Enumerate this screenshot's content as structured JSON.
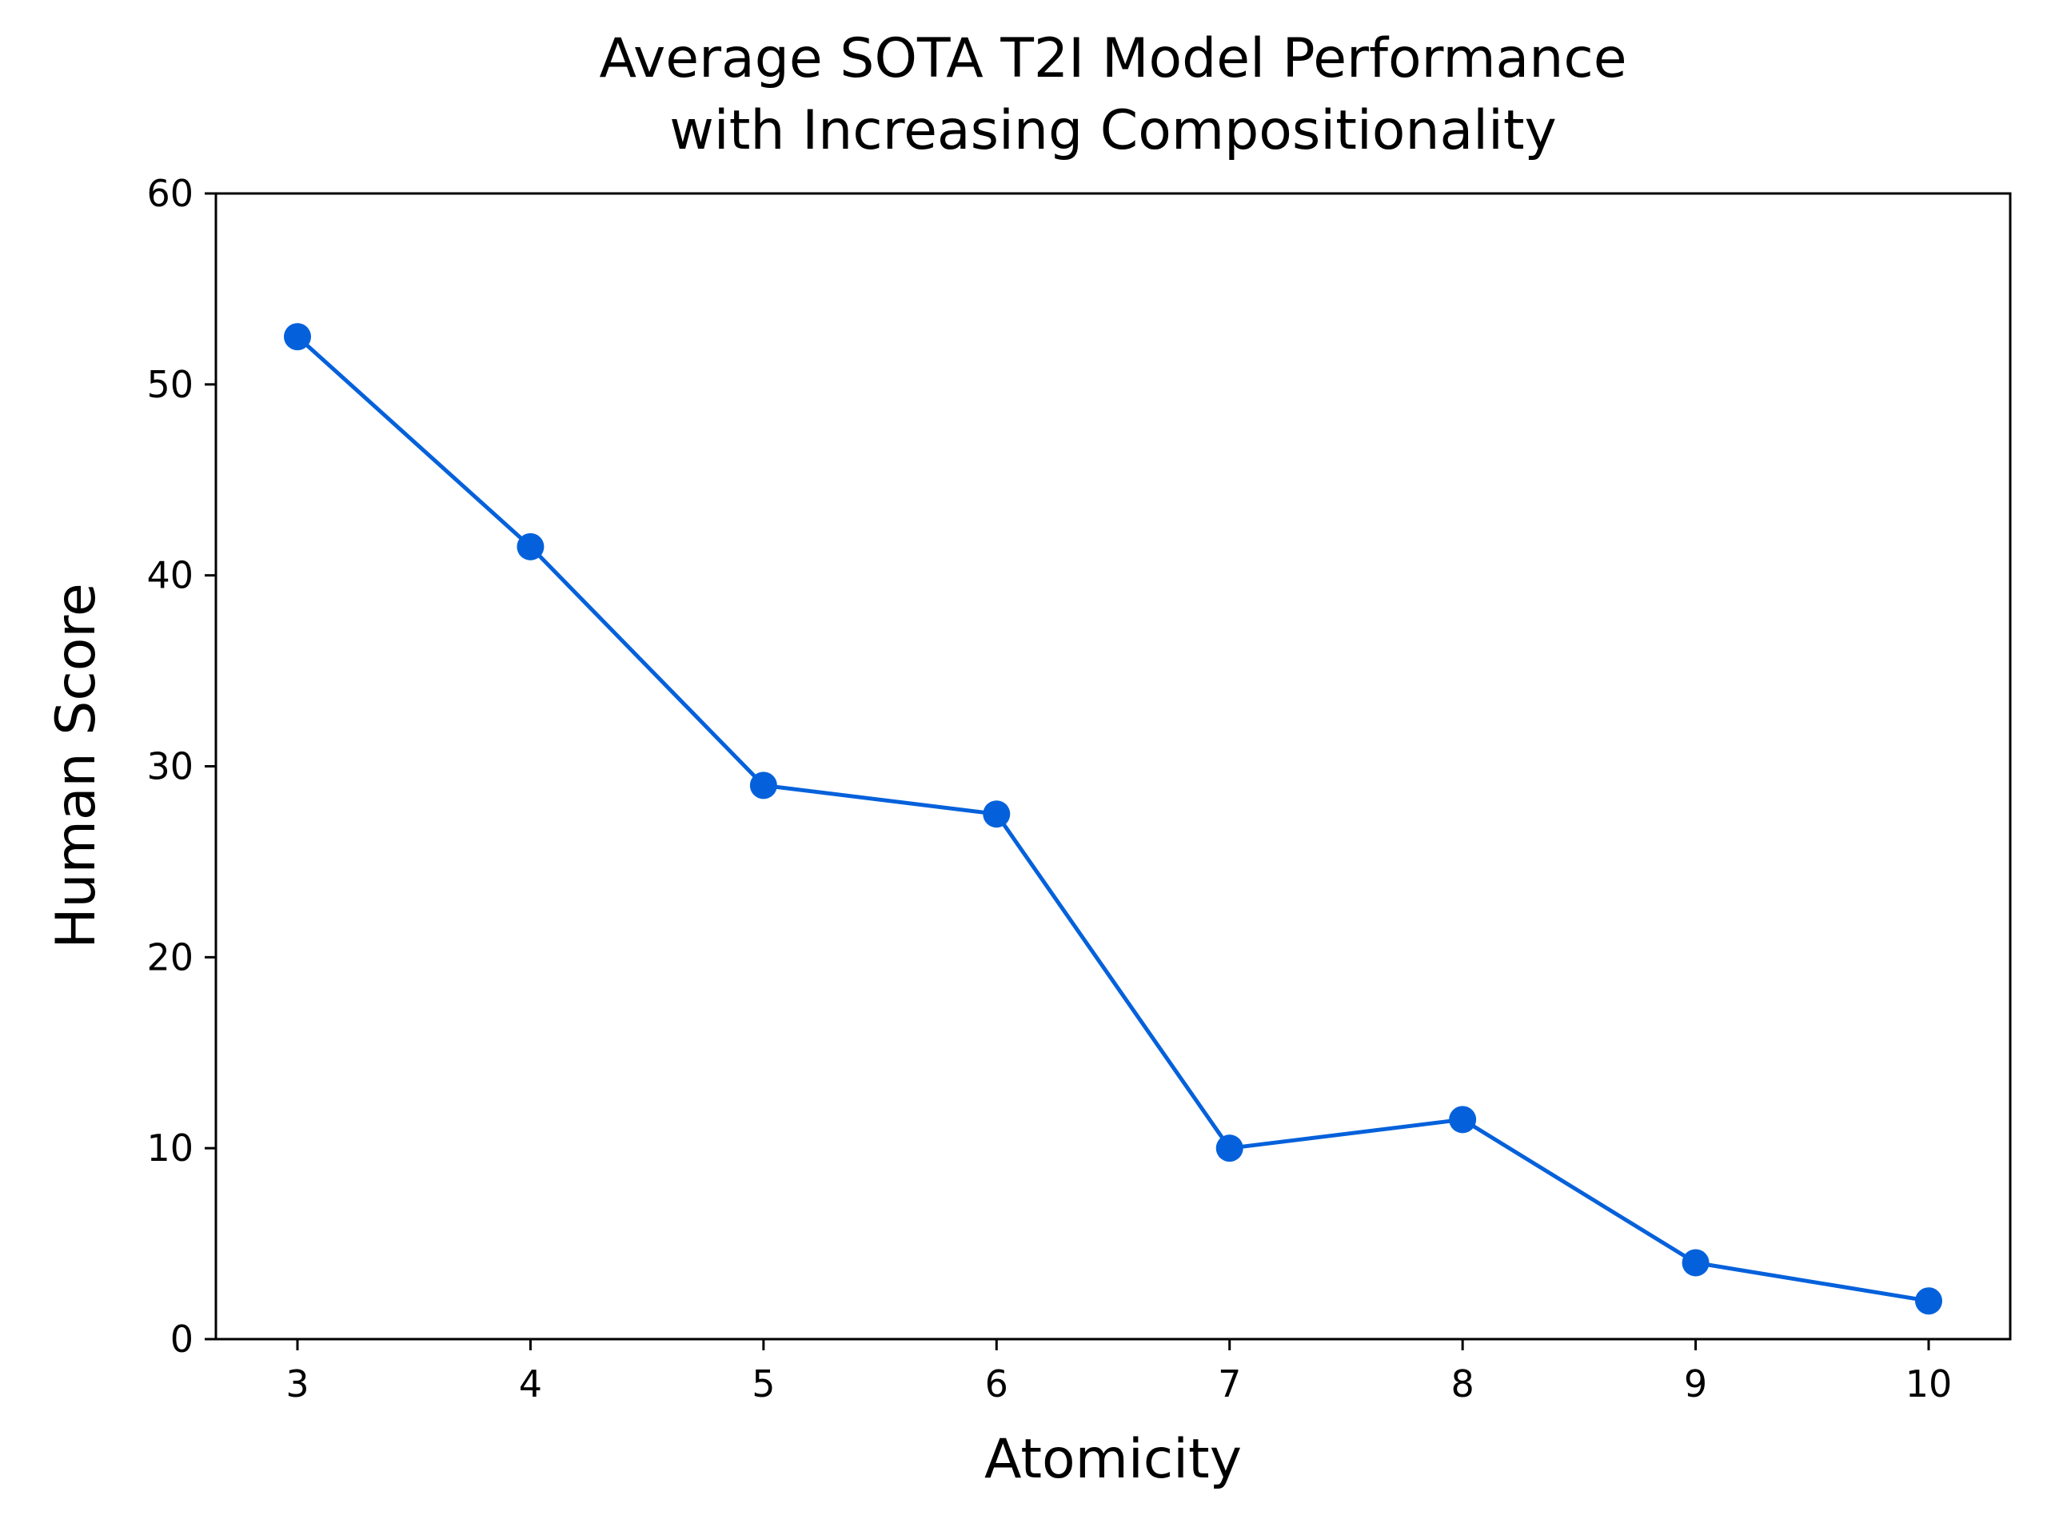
{
  "chart_data": {
    "type": "line",
    "title_lines": [
      "Average SOTA T2I Model Performance",
      "with Increasing Compositionality"
    ],
    "xlabel": "Atomicity",
    "ylabel": "Human Score",
    "x": [
      3,
      4,
      5,
      6,
      7,
      8,
      9,
      10
    ],
    "series": [
      {
        "name": "Average SOTA T2I Model",
        "values": [
          52.5,
          41.5,
          29,
          27.5,
          10,
          11.5,
          4,
          2
        ],
        "color": "#0561DB"
      }
    ],
    "xticks": [
      "3",
      "4",
      "5",
      "6",
      "7",
      "8",
      "9",
      "10"
    ],
    "yticks": [
      "0",
      "10",
      "20",
      "30",
      "40",
      "50",
      "60"
    ],
    "xlim": [
      2.65,
      10.35
    ],
    "ylim": [
      0,
      60
    ],
    "grid": false,
    "legend": "none"
  }
}
